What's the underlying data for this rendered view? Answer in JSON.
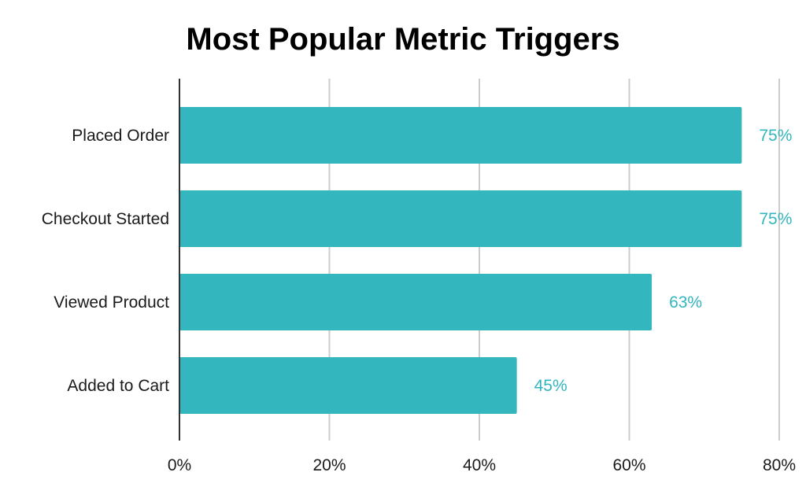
{
  "chart_data": {
    "type": "bar",
    "orientation": "horizontal",
    "title": "Most Popular Metric Triggers",
    "xlabel": "",
    "ylabel": "",
    "categories": [
      "Placed Order",
      "Checkout Started",
      "Viewed Product",
      "Added to Cart"
    ],
    "values": [
      75,
      75,
      63,
      45
    ],
    "data_labels": [
      "75%",
      "75%",
      "63%",
      "45%"
    ],
    "xlim": [
      0,
      80
    ],
    "x_ticks": [
      0,
      20,
      40,
      60,
      80
    ],
    "x_tick_labels": [
      "0%",
      "20%",
      "40%",
      "60%",
      "80%"
    ],
    "grid": true,
    "legend": "none",
    "bar_color": "#33b6bd",
    "label_color": "#33b6bd",
    "grid_color": "#cccccc"
  }
}
